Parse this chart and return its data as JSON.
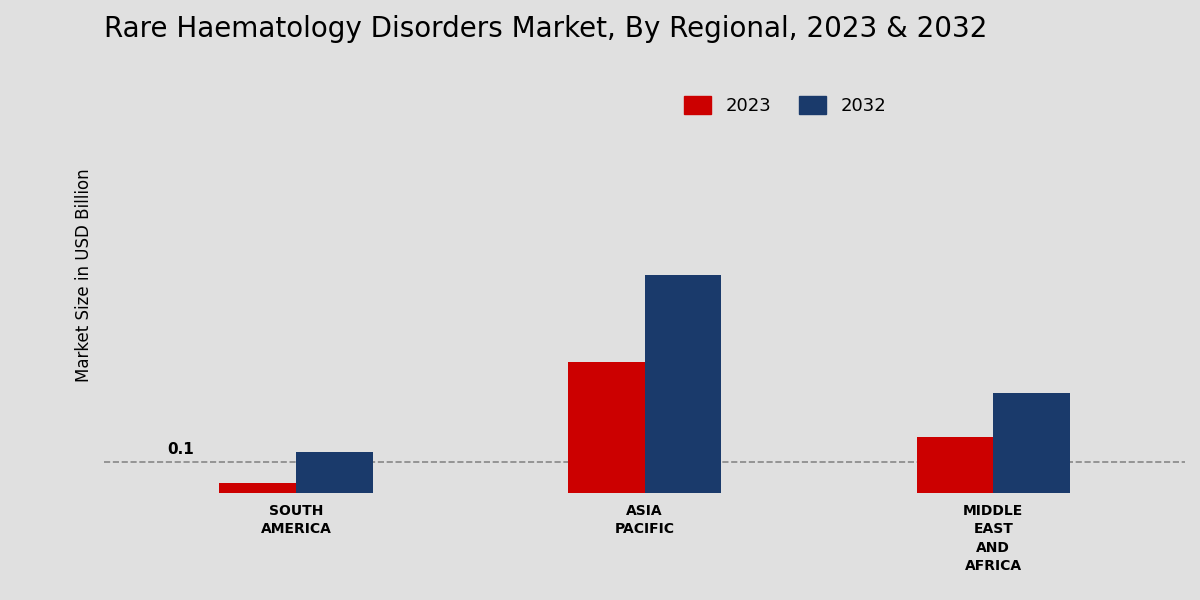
{
  "title": "Rare Haematology Disorders Market, By Regional, 2023 & 2032",
  "ylabel": "Market Size in USD Billion",
  "categories": [
    "SOUTH\nAMERICA",
    "ASIA\nPACIFIC",
    "MIDDLE\nEAST\nAND\nAFRICA"
  ],
  "values_2023": [
    0.03,
    0.42,
    0.18
  ],
  "values_2032": [
    0.13,
    0.7,
    0.32
  ],
  "color_2023": "#cc0000",
  "color_2032": "#1a3a6b",
  "annotation_value": "0.1",
  "dashed_line_y": 0.1,
  "background_color": "#e0e0e0",
  "title_fontsize": 20,
  "ylabel_fontsize": 12,
  "legend_labels": [
    "2023",
    "2032"
  ],
  "bar_width": 0.22,
  "ylim": [
    0,
    1.4
  ],
  "xlim_left": -0.55,
  "xlim_right": 2.55
}
